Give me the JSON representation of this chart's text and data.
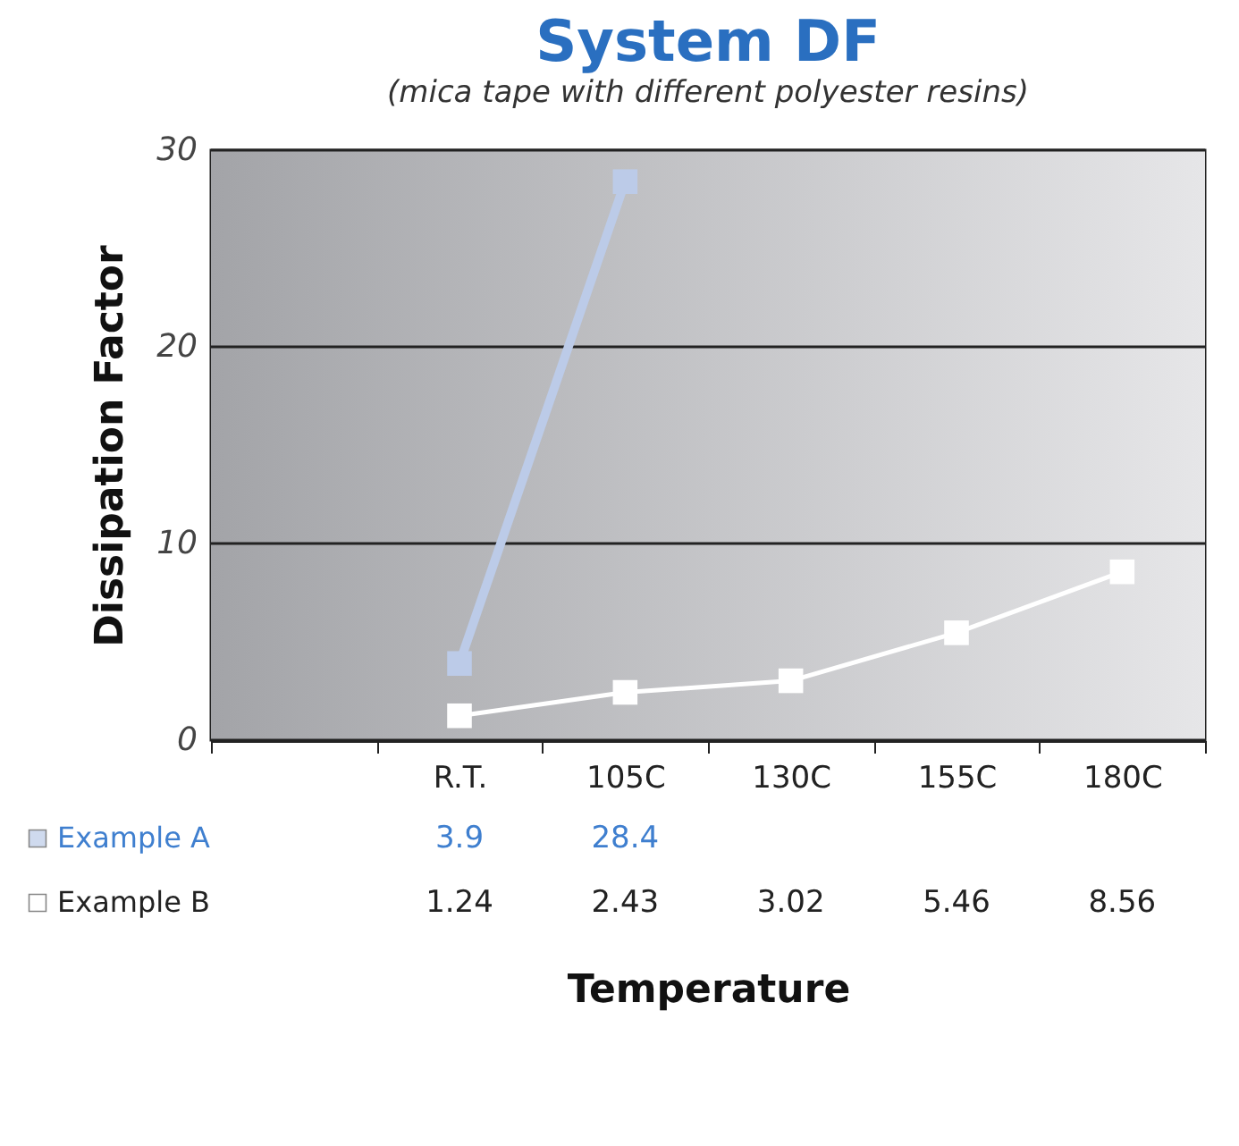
{
  "chart_data": {
    "type": "line",
    "title": "System DF",
    "subtitle": "(mica tape with different polyester resins)",
    "xlabel": "Temperature",
    "ylabel": "Dissipation Factor",
    "categories": [
      null,
      "R.T.",
      "105C",
      "130C",
      "155C",
      "180C"
    ],
    "series": [
      {
        "name": "Example A",
        "color": "#bccbe8",
        "values": [
          null,
          3.9,
          28.4,
          null,
          null,
          null
        ]
      },
      {
        "name": "Example B",
        "color": "#ffffff",
        "values": [
          null,
          1.24,
          2.43,
          3.02,
          5.46,
          8.56
        ]
      }
    ],
    "ylim": [
      0,
      30
    ],
    "yticks": [
      0,
      10,
      20,
      30
    ],
    "grid": "y",
    "legend": "bottom left",
    "marker": "square",
    "data_labels": true
  }
}
